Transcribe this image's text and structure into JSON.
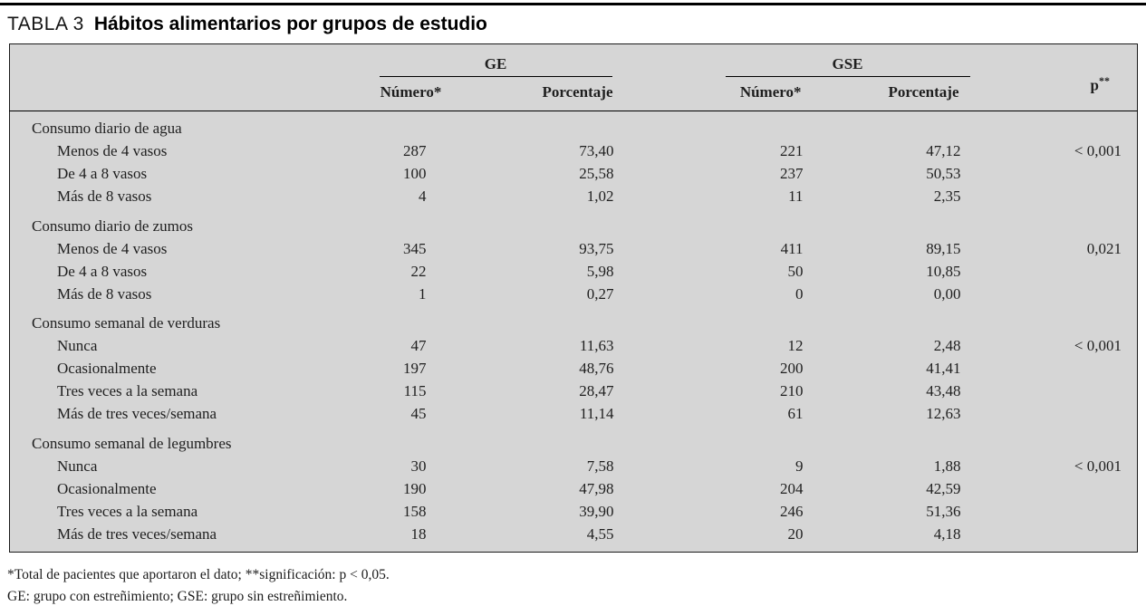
{
  "title": {
    "label": "TABLA 3",
    "text": "Hábitos alimentarios por grupos de estudio"
  },
  "table": {
    "col_groups": {
      "ge": "GE",
      "gse": "GSE"
    },
    "sub_headers": {
      "number": "Número*",
      "percentage": "Porcentaje"
    },
    "p_header": {
      "base": "p",
      "sup": "**"
    },
    "groups": [
      {
        "label": "Consumo diario de agua",
        "rows": [
          {
            "label": "Menos de 4 vasos",
            "ge_n": "287",
            "ge_pct": "73,40",
            "gse_n": "221",
            "gse_pct": "47,12",
            "p": "< 0,001"
          },
          {
            "label": "De 4 a 8 vasos",
            "ge_n": "100",
            "ge_pct": "25,58",
            "gse_n": "237",
            "gse_pct": "50,53",
            "p": ""
          },
          {
            "label": "Más de 8 vasos",
            "ge_n": "4",
            "ge_pct": "1,02",
            "gse_n": "11",
            "gse_pct": "2,35",
            "p": ""
          }
        ]
      },
      {
        "label": "Consumo diario de zumos",
        "rows": [
          {
            "label": "Menos de 4 vasos",
            "ge_n": "345",
            "ge_pct": "93,75",
            "gse_n": "411",
            "gse_pct": "89,15",
            "p": "0,021"
          },
          {
            "label": "De 4 a 8 vasos",
            "ge_n": "22",
            "ge_pct": "5,98",
            "gse_n": "50",
            "gse_pct": "10,85",
            "p": ""
          },
          {
            "label": "Más de 8 vasos",
            "ge_n": "1",
            "ge_pct": "0,27",
            "gse_n": "0",
            "gse_pct": "0,00",
            "p": ""
          }
        ]
      },
      {
        "label": "Consumo semanal de verduras",
        "rows": [
          {
            "label": "Nunca",
            "ge_n": "47",
            "ge_pct": "11,63",
            "gse_n": "12",
            "gse_pct": "2,48",
            "p": "< 0,001"
          },
          {
            "label": "Ocasionalmente",
            "ge_n": "197",
            "ge_pct": "48,76",
            "gse_n": "200",
            "gse_pct": "41,41",
            "p": ""
          },
          {
            "label": "Tres veces a la semana",
            "ge_n": "115",
            "ge_pct": "28,47",
            "gse_n": "210",
            "gse_pct": "43,48",
            "p": ""
          },
          {
            "label": "Más de tres veces/semana",
            "ge_n": "45",
            "ge_pct": "11,14",
            "gse_n": "61",
            "gse_pct": "12,63",
            "p": ""
          }
        ]
      },
      {
        "label": "Consumo semanal de legumbres",
        "rows": [
          {
            "label": "Nunca",
            "ge_n": "30",
            "ge_pct": "7,58",
            "gse_n": "9",
            "gse_pct": "1,88",
            "p": "< 0,001"
          },
          {
            "label": "Ocasionalmente",
            "ge_n": "190",
            "ge_pct": "47,98",
            "gse_n": "204",
            "gse_pct": "42,59",
            "p": ""
          },
          {
            "label": "Tres veces a la semana",
            "ge_n": "158",
            "ge_pct": "39,90",
            "gse_n": "246",
            "gse_pct": "51,36",
            "p": ""
          },
          {
            "label": "Más de tres veces/semana",
            "ge_n": "18",
            "ge_pct": "4,55",
            "gse_n": "20",
            "gse_pct": "4,18",
            "p": ""
          }
        ]
      }
    ]
  },
  "footnotes": [
    "*Total de pacientes que aportaron el dato; **significación: p < 0,05.",
    "GE: grupo con estreñimiento; GSE: grupo sin estreñimiento."
  ],
  "colors": {
    "table_background": "#d6d6d6",
    "rule": "#000000",
    "text": "#1b1b1b"
  }
}
